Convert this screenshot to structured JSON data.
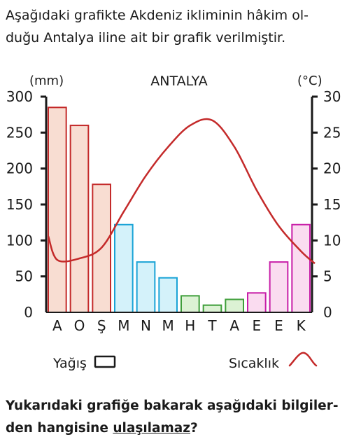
{
  "intro": {
    "line1": "Aşağıdaki grafikte Akdeniz ikliminin hâkim ol-",
    "line2": "duğu Antalya iline ait bir grafik verilmiştir."
  },
  "question": {
    "line1": "Yukarıdaki grafiğe bakarak aşağıdaki bilgiler-",
    "line2_prefix": "den hangisine ",
    "line2_underlined": "ulaşılamaz",
    "line2_suffix": "?"
  },
  "chart_data": {
    "type": "bar",
    "title": "ANTALYA",
    "left_unit": "(mm)",
    "right_unit": "(°C)",
    "categories": [
      "A",
      "O",
      "Ş",
      "M",
      "N",
      "M",
      "H",
      "T",
      "A",
      "E",
      "E",
      "K"
    ],
    "left_axis": {
      "ylim": [
        0,
        300
      ],
      "ticks": [
        0,
        50,
        100,
        150,
        200,
        250,
        300
      ]
    },
    "right_axis": {
      "ylim": [
        0,
        30
      ],
      "ticks": [
        0,
        5,
        10,
        15,
        20,
        25,
        30
      ]
    },
    "grid": false,
    "series": [
      {
        "name": "Yağış",
        "chart": "bar",
        "axis": "left",
        "values": [
          285,
          260,
          178,
          122,
          70,
          48,
          23,
          10,
          18,
          27,
          70,
          122
        ],
        "fills": [
          "#f8ddd2",
          "#f8ddd2",
          "#f8ddd2",
          "#d4f2fa",
          "#d4f2fa",
          "#d4f2fa",
          "#dcf2d4",
          "#dcf2d4",
          "#dcf2d4",
          "#fadcf0",
          "#fadcf0",
          "#fadcf0"
        ],
        "strokes": [
          "#c42a2a",
          "#c42a2a",
          "#c42a2a",
          "#1aa3d6",
          "#1aa3d6",
          "#1aa3d6",
          "#3e9e3a",
          "#3e9e3a",
          "#3e9e3a",
          "#c81fa8",
          "#c81fa8",
          "#c81fa8"
        ]
      },
      {
        "name": "Sıcaklık",
        "chart": "line",
        "axis": "right",
        "color": "#c42a2a",
        "values": [
          7.3,
          7.5,
          9.0,
          14.0,
          19.0,
          23.0,
          26.0,
          26.7,
          23.0,
          17.0,
          12.0,
          8.5
        ]
      }
    ],
    "legend": [
      {
        "label": "Yağış",
        "symbol": "box"
      },
      {
        "label": "Sıcaklık",
        "symbol": "red-line"
      }
    ],
    "legend_placement": "bottom"
  }
}
